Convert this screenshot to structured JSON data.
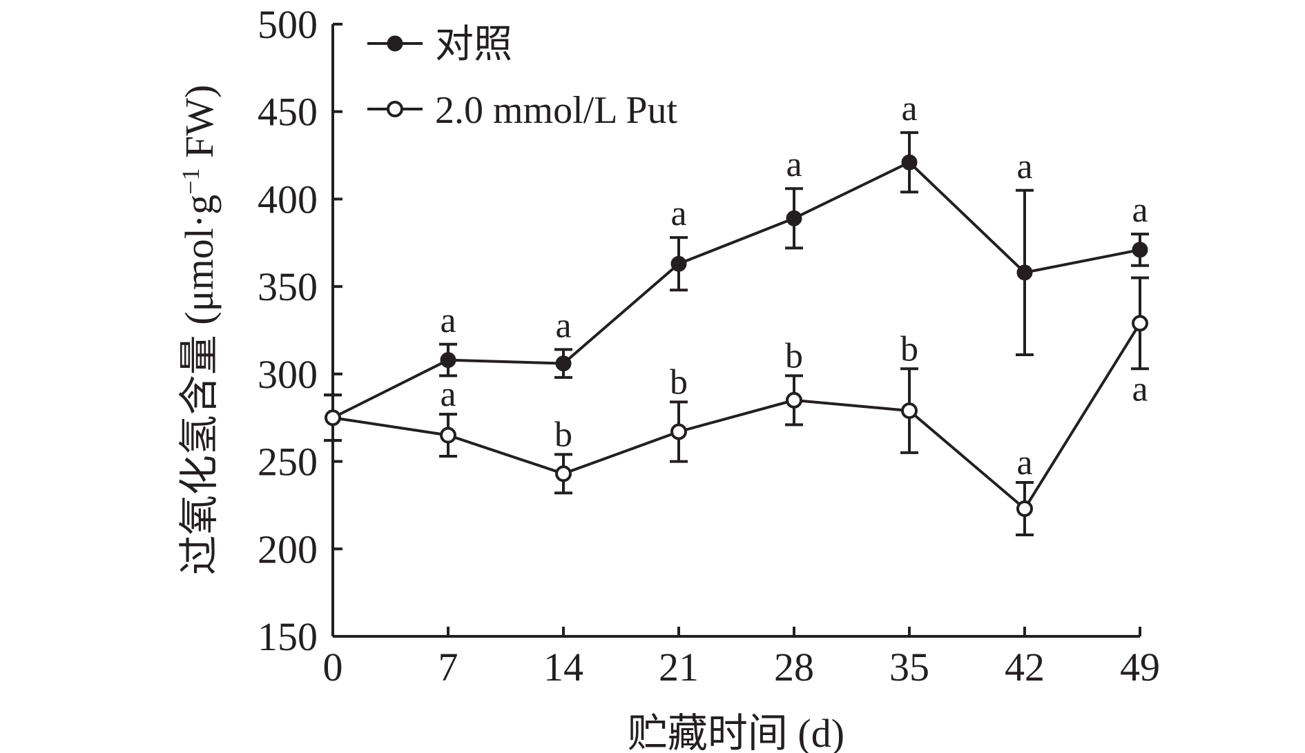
{
  "chart_data": {
    "type": "line",
    "xlabel": "贮藏时间 (d)",
    "ylabel": "过氧化氢含量 (μmol·g",
    "ylabel_sup": "−1",
    "ylabel_tail": " FW)",
    "x": [
      0,
      7,
      14,
      21,
      28,
      35,
      42,
      49
    ],
    "x_ticks": [
      "0",
      "7",
      "14",
      "21",
      "28",
      "35",
      "42",
      "49"
    ],
    "y_ticks": [
      "150",
      "200",
      "250",
      "300",
      "350",
      "400",
      "450",
      "500"
    ],
    "xlim": [
      0,
      49
    ],
    "ylim": [
      150,
      500
    ],
    "grid": false,
    "legend_position": "top-left",
    "series": [
      {
        "name": "对照",
        "marker": "filled-circle",
        "values": [
          275,
          308,
          306,
          363,
          389,
          421,
          358,
          371
        ],
        "errors": [
          13,
          9,
          8,
          15,
          17,
          17,
          47,
          9
        ],
        "sig_labels": [
          "",
          "a",
          "a",
          "a",
          "a",
          "a",
          "a",
          "a"
        ]
      },
      {
        "name": "2.0 mmol/L Put",
        "marker": "open-circle",
        "values": [
          275,
          265,
          243,
          267,
          285,
          279,
          223,
          329
        ],
        "errors": [
          13,
          12,
          11,
          17,
          14,
          24,
          15,
          26
        ],
        "sig_labels": [
          "",
          "a",
          "b",
          "b",
          "b",
          "b",
          "a",
          "a"
        ]
      }
    ],
    "colors": {
      "line": "#231f20",
      "open_fill": "#ffffff"
    }
  }
}
